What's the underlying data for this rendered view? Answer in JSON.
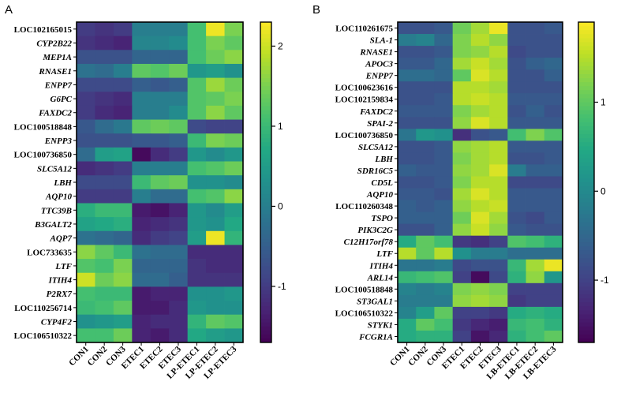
{
  "chart_data": [
    {
      "type": "heatmap",
      "panel_label": "A",
      "columns": [
        "CON1",
        "CON2",
        "CON3",
        "ETEC1",
        "ETEC2",
        "ETEC3",
        "LP-ETEC1",
        "LP-ETEC2",
        "LP-ETEC3"
      ],
      "rows": [
        "LOC102165015",
        "CYP2B22",
        "MEP1A",
        "RNASE1",
        "ENPP7",
        "G6PC",
        "FAXDC2",
        "LOC100518848",
        "ENPP3",
        "LOC100736850",
        "SLC5A12",
        "LBH",
        "AQP10",
        "TTC39B",
        "B3GALT2",
        "AQP7",
        "LOC733635",
        "LTF",
        "ITIH4",
        "P2RX7",
        "LOC110256714",
        "CYP4F2",
        "LOC106510322"
      ],
      "italic_rows": [
        "CYP2B22",
        "MEP1A",
        "RNASE1",
        "ENPP7",
        "G6PC",
        "FAXDC2",
        "ENPP3",
        "SLC5A12",
        "LBH",
        "AQP10",
        "TTC39B",
        "B3GALT2",
        "AQP7",
        "LTF",
        "ITIH4",
        "P2RX7",
        "CYP4F2"
      ],
      "values": [
        [
          -1.0,
          -1.1,
          -1.0,
          0.0,
          0.0,
          0.0,
          1.1,
          2.2,
          1.5
        ],
        [
          -1.1,
          -1.2,
          -1.3,
          0.1,
          0.1,
          0.2,
          1.1,
          1.5,
          1.3
        ],
        [
          -0.7,
          -0.7,
          -0.7,
          -0.4,
          -0.4,
          -0.4,
          1.1,
          1.4,
          1.6
        ],
        [
          -0.2,
          -0.3,
          0.0,
          1.3,
          1.2,
          1.4,
          0.4,
          0.5,
          0.3
        ],
        [
          -0.8,
          -0.8,
          -0.8,
          -0.5,
          -0.6,
          -0.5,
          1.2,
          1.7,
          1.4
        ],
        [
          -1.0,
          -1.1,
          -1.2,
          0.0,
          0.0,
          0.0,
          1.2,
          1.3,
          1.5
        ],
        [
          -1.0,
          -1.2,
          -1.3,
          0.0,
          0.0,
          0.2,
          1.2,
          1.6,
          1.3
        ],
        [
          -0.6,
          -0.3,
          -0.1,
          1.3,
          1.4,
          1.3,
          -0.8,
          -0.9,
          -0.9
        ],
        [
          -0.7,
          -0.7,
          -0.7,
          -0.6,
          -0.6,
          -0.5,
          1.0,
          1.5,
          1.4
        ],
        [
          -0.3,
          0.5,
          0.6,
          -1.6,
          -1.2,
          -1.0,
          0.4,
          0.2,
          0.4
        ],
        [
          -1.2,
          -1.1,
          -1.0,
          0.0,
          0.0,
          0.0,
          1.1,
          1.2,
          1.4
        ],
        [
          -0.8,
          -0.8,
          -0.8,
          1.0,
          1.3,
          1.4,
          0.3,
          0.3,
          0.2
        ],
        [
          -1.0,
          -1.0,
          -1.0,
          0.0,
          -0.3,
          -0.3,
          1.1,
          1.2,
          1.6
        ],
        [
          0.8,
          1.0,
          1.0,
          -1.4,
          -1.5,
          -1.3,
          0.4,
          0.2,
          0.5
        ],
        [
          0.6,
          0.7,
          0.8,
          -1.3,
          -1.2,
          -1.1,
          0.4,
          0.3,
          0.7
        ],
        [
          -0.2,
          -0.3,
          -0.4,
          -1.2,
          -1.0,
          -0.9,
          0.5,
          2.2,
          0.9
        ],
        [
          1.6,
          1.3,
          1.0,
          -0.2,
          -0.3,
          -0.3,
          -1.2,
          -1.2,
          -1.2
        ],
        [
          1.2,
          1.1,
          1.5,
          -0.4,
          -0.4,
          -0.4,
          -1.1,
          -1.2,
          -1.2
        ],
        [
          2.0,
          1.4,
          1.6,
          -0.3,
          -0.3,
          -0.5,
          -1.1,
          -1.1,
          -1.1
        ],
        [
          1.1,
          1.0,
          1.0,
          -1.4,
          -1.3,
          -1.3,
          0.3,
          0.3,
          0.4
        ],
        [
          1.0,
          1.1,
          1.3,
          -1.4,
          -1.4,
          -1.2,
          0.4,
          0.3,
          0.3
        ],
        [
          0.3,
          0.4,
          0.5,
          -1.3,
          -1.2,
          -1.2,
          0.9,
          1.3,
          1.2
        ],
        [
          1.1,
          1.1,
          1.4,
          -1.3,
          -1.4,
          -1.2,
          0.7,
          0.5,
          0.4
        ]
      ],
      "vmin": -1.7,
      "vmax": 2.3,
      "colorbar_ticks": [
        2,
        1,
        0,
        -1
      ],
      "colorbar_tick_labels": [
        "2",
        "1",
        "0",
        "-1"
      ],
      "colormap": "viridis"
    },
    {
      "type": "heatmap",
      "panel_label": "B",
      "columns": [
        "CON1",
        "CON2",
        "CON3",
        "ETEC1",
        "ETEC2",
        "ETEC3",
        "LB-ETEC1",
        "LB-ETEC2",
        "LB-ETEC3"
      ],
      "rows": [
        "LOC110261675",
        "SLA-1",
        "RNASE1",
        "APOC3",
        "ENPP7",
        "LOC100623616",
        "LOC102159834",
        "FAXDC2",
        "SPAI-2",
        "LOC100736850",
        "SLC5A12",
        "LBH",
        "SDR16C5",
        "CD5L",
        "AQP10",
        "LOC110260348",
        "TSPO",
        "PIK3C2G",
        "C12H17orf78",
        "LTF",
        "ITIH4",
        "ARL14",
        "LOC100518848",
        "ST3GAL1",
        "LOC106510322",
        "STYK1",
        "FCGR1A"
      ],
      "italic_rows": [
        "SLA-1",
        "RNASE1",
        "APOC3",
        "ENPP7",
        "FAXDC2",
        "SPAI-2",
        "SLC5A12",
        "LBH",
        "SDR16C5",
        "CD5L",
        "AQP10",
        "TSPO",
        "PIK3C2G",
        "C12H17orf78",
        "LTF",
        "ITIH4",
        "ARL14",
        "ST3GAL1",
        "STYK1",
        "FCGR1A"
      ],
      "values": [
        [
          -0.8,
          -0.8,
          -0.7,
          1.1,
          1.4,
          1.8,
          -0.8,
          -0.8,
          -0.7
        ],
        [
          -0.2,
          -0.1,
          -0.5,
          1.2,
          1.5,
          1.3,
          -0.8,
          -0.8,
          -0.8
        ],
        [
          -0.8,
          -0.8,
          -0.7,
          1.2,
          1.3,
          1.5,
          -0.9,
          -0.8,
          -0.8
        ],
        [
          -0.7,
          -0.7,
          -0.5,
          1.4,
          1.6,
          1.4,
          -0.8,
          -0.6,
          -0.5
        ],
        [
          -0.4,
          -0.4,
          -0.5,
          1.0,
          1.7,
          1.5,
          -0.8,
          -0.8,
          -0.6
        ],
        [
          -0.8,
          -0.8,
          -0.8,
          1.5,
          1.5,
          1.4,
          -0.8,
          -0.8,
          -0.8
        ],
        [
          -0.8,
          -0.8,
          -0.7,
          1.5,
          1.6,
          1.5,
          -0.7,
          -0.7,
          -0.7
        ],
        [
          -0.7,
          -0.7,
          -0.7,
          1.2,
          1.4,
          1.5,
          -0.8,
          -0.6,
          -0.8
        ],
        [
          -0.8,
          -0.8,
          -0.8,
          1.3,
          1.7,
          1.5,
          -0.7,
          -0.7,
          -0.7
        ],
        [
          -0.3,
          0.2,
          0.1,
          -1.2,
          -0.8,
          -0.7,
          0.8,
          1.2,
          0.9
        ],
        [
          -0.8,
          -0.8,
          -0.7,
          1.3,
          1.4,
          1.5,
          -0.7,
          -0.7,
          -0.7
        ],
        [
          -0.8,
          -0.8,
          -0.7,
          1.2,
          1.4,
          1.5,
          -0.8,
          -0.8,
          -0.7
        ],
        [
          -0.6,
          -0.7,
          -0.7,
          1.3,
          1.4,
          1.7,
          -0.2,
          -0.6,
          -0.6
        ],
        [
          -0.8,
          -0.8,
          -0.7,
          1.2,
          1.5,
          1.5,
          -0.9,
          -0.9,
          -0.9
        ],
        [
          -0.7,
          -0.7,
          -0.8,
          1.4,
          1.7,
          1.5,
          -0.7,
          -0.7,
          -0.7
        ],
        [
          -0.6,
          -0.7,
          -0.6,
          1.3,
          1.5,
          1.6,
          -0.7,
          -0.7,
          -0.7
        ],
        [
          -0.6,
          -0.6,
          -0.6,
          1.1,
          1.7,
          1.4,
          -0.8,
          -0.9,
          -0.7
        ],
        [
          -0.8,
          -0.8,
          -0.6,
          1.3,
          1.6,
          1.3,
          -0.7,
          -0.8,
          -0.8
        ],
        [
          0.5,
          1.0,
          0.8,
          -1.1,
          -1.2,
          -1.0,
          0.9,
          0.8,
          0.6
        ],
        [
          1.5,
          1.0,
          1.5,
          0.1,
          -0.2,
          -0.2,
          -0.4,
          -0.4,
          -0.4
        ],
        [
          -0.3,
          -0.3,
          -0.2,
          -0.9,
          -0.8,
          -0.8,
          0.7,
          1.4,
          1.8
        ],
        [
          0.7,
          0.8,
          0.9,
          -1.0,
          -1.6,
          -0.9,
          0.6,
          1.3,
          0.2
        ],
        [
          -0.1,
          -0.2,
          -0.1,
          1.2,
          1.3,
          1.2,
          -1.0,
          -1.0,
          -1.0
        ],
        [
          -0.2,
          -0.2,
          -0.2,
          1.3,
          1.4,
          1.3,
          -1.1,
          -1.0,
          -1.0
        ],
        [
          -0.1,
          0.3,
          1.0,
          -1.0,
          -1.0,
          -1.1,
          0.5,
          0.6,
          0.5
        ],
        [
          0.5,
          1.0,
          0.8,
          -1.1,
          -1.3,
          -1.4,
          0.7,
          0.8,
          0.6
        ],
        [
          0.5,
          0.6,
          0.6,
          -1.0,
          -1.5,
          -1.3,
          0.6,
          0.8,
          1.0
        ]
      ],
      "vmin": -1.7,
      "vmax": 1.9,
      "colorbar_ticks": [
        1,
        0,
        -1
      ],
      "colorbar_tick_labels": [
        "1",
        "0",
        "-1"
      ],
      "colormap": "viridis"
    }
  ]
}
